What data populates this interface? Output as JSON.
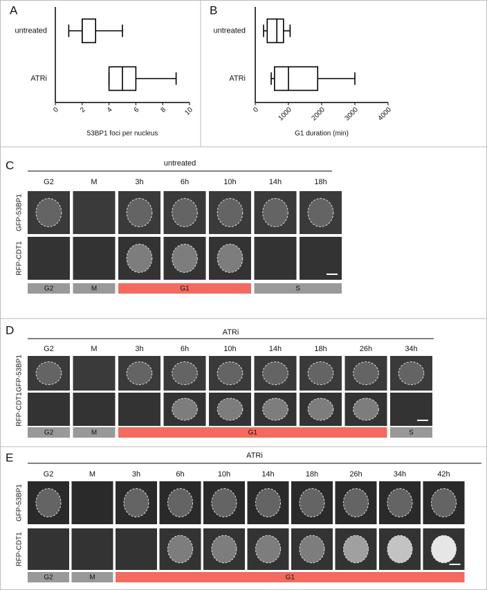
{
  "chart_data": [
    {
      "type": "box",
      "label": "A",
      "categories": [
        "untreated",
        "ATRi"
      ],
      "min": [
        1,
        4
      ],
      "q1": [
        2,
        4
      ],
      "median": [
        2,
        5
      ],
      "q3": [
        3,
        6
      ],
      "max": [
        5,
        9
      ],
      "xlim": [
        0,
        10
      ],
      "xticks": [
        0,
        2,
        4,
        6,
        8,
        10
      ],
      "xlabel": "53BP1 foci per nucleus",
      "color": "#000000"
    },
    {
      "type": "box",
      "label": "B",
      "categories": [
        "untreated",
        "ATRi"
      ],
      "min": [
        250,
        480
      ],
      "q1": [
        360,
        580
      ],
      "median": [
        650,
        1000
      ],
      "q3": [
        850,
        1880
      ],
      "max": [
        1050,
        3000
      ],
      "xlim": [
        0,
        4000
      ],
      "xticks": [
        0,
        1000,
        2000,
        3000,
        4000
      ],
      "xlabel": "G1 duration (min)",
      "color": "#000000"
    }
  ],
  "panels": [
    {
      "label": "C",
      "condition": "untreated",
      "timepoints": [
        "G2",
        "M",
        "3h",
        "6h",
        "10h",
        "14h",
        "18h"
      ],
      "rows": [
        "GFP-53BP1",
        "RFP-CDT1"
      ],
      "phases": [
        {
          "label": "G2",
          "span": 1,
          "color": "#999999"
        },
        {
          "label": "M",
          "span": 1,
          "color": "#999999"
        },
        {
          "label": "G1",
          "span": 3,
          "color": "#f36b5e"
        },
        {
          "label": "S",
          "span": 2,
          "color": "#999999"
        }
      ]
    },
    {
      "label": "D",
      "condition": "ATRi",
      "timepoints": [
        "G2",
        "M",
        "3h",
        "6h",
        "10h",
        "14h",
        "18h",
        "26h",
        "34h"
      ],
      "rows": [
        "GFP-53BP1",
        "RFP-CDT1"
      ],
      "phases": [
        {
          "label": "G2",
          "span": 1,
          "color": "#999999"
        },
        {
          "label": "M",
          "span": 1,
          "color": "#999999"
        },
        {
          "label": "G1",
          "span": 6,
          "color": "#f36b5e"
        },
        {
          "label": "S",
          "span": 1,
          "color": "#999999"
        }
      ]
    },
    {
      "label": "E",
      "condition": "ATRi",
      "timepoints": [
        "G2",
        "M",
        "3h",
        "6h",
        "10h",
        "14h",
        "18h",
        "26h",
        "34h",
        "42h"
      ],
      "rows": [
        "GFP-53BP1",
        "RFP-CDT1"
      ],
      "phases": [
        {
          "label": "G2",
          "span": 1,
          "color": "#999999"
        },
        {
          "label": "M",
          "span": 1,
          "color": "#999999"
        },
        {
          "label": "G1",
          "span": 8,
          "color": "#f36b5e"
        }
      ]
    }
  ]
}
